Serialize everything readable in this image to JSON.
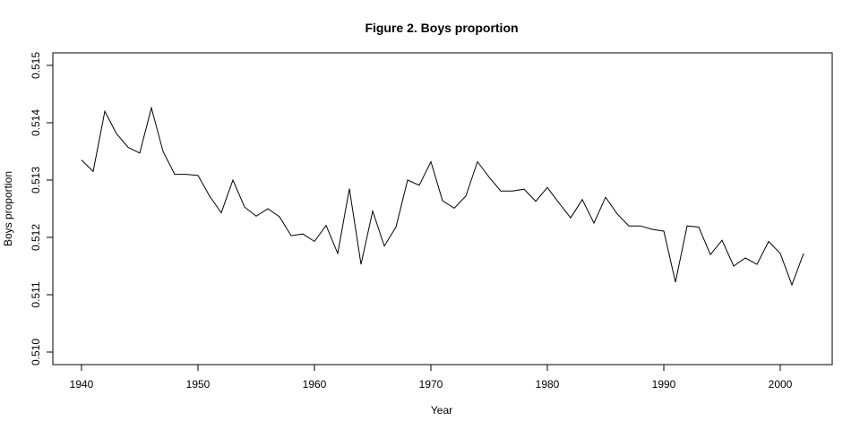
{
  "chart_data": {
    "type": "line",
    "title": "Figure 2. Boys proportion",
    "xlabel": "Year",
    "ylabel": "Boys proportion",
    "xlim": [
      1940,
      2002
    ],
    "ylim": [
      0.51,
      0.515
    ],
    "x_ticks": [
      1940,
      1950,
      1960,
      1970,
      1980,
      1990,
      2000
    ],
    "x_tick_labels": [
      "1940",
      "1950",
      "1960",
      "1970",
      "1980",
      "1990",
      "2000"
    ],
    "y_ticks": [
      0.51,
      0.511,
      0.512,
      0.513,
      0.514,
      0.515
    ],
    "y_tick_labels": [
      "0.510",
      "0.511",
      "0.512",
      "0.513",
      "0.514",
      "0.515"
    ],
    "grid": false,
    "line_color": "#000000",
    "x": [
      1940,
      1941,
      1942,
      1943,
      1944,
      1945,
      1946,
      1947,
      1948,
      1949,
      1950,
      1951,
      1952,
      1953,
      1954,
      1955,
      1956,
      1957,
      1958,
      1959,
      1960,
      1961,
      1962,
      1963,
      1964,
      1965,
      1966,
      1967,
      1968,
      1969,
      1970,
      1971,
      1972,
      1973,
      1974,
      1975,
      1976,
      1977,
      1978,
      1979,
      1980,
      1981,
      1982,
      1983,
      1984,
      1985,
      1986,
      1987,
      1988,
      1989,
      1990,
      1991,
      1992,
      1993,
      1994,
      1995,
      1996,
      1997,
      1998,
      1999,
      2000,
      2001,
      2002
    ],
    "y": [
      0.51335,
      0.51315,
      0.5142,
      0.51381,
      0.51357,
      0.51347,
      0.51426,
      0.5135,
      0.5131,
      0.5131,
      0.51308,
      0.51272,
      0.51243,
      0.513,
      0.51253,
      0.51237,
      0.5125,
      0.51236,
      0.51203,
      0.51206,
      0.51193,
      0.51221,
      0.51172,
      0.51285,
      0.51153,
      0.51246,
      0.51185,
      0.51218,
      0.513,
      0.51291,
      0.51332,
      0.51264,
      0.51251,
      0.51272,
      0.51332,
      0.51305,
      0.51281,
      0.51281,
      0.51284,
      0.51263,
      0.51287,
      0.5126,
      0.51234,
      0.51266,
      0.51225,
      0.5127,
      0.51241,
      0.5122,
      0.5122,
      0.51214,
      0.51211,
      0.51122,
      0.5122,
      0.51218,
      0.5117,
      0.51195,
      0.5115,
      0.51164,
      0.51153,
      0.51193,
      0.51172,
      0.51117,
      0.51172
    ]
  }
}
